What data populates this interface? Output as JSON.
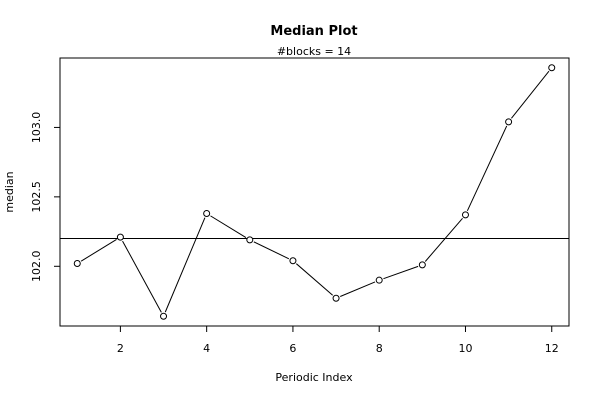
{
  "chart_data": {
    "type": "line",
    "title": "Median Plot",
    "subtitle": "#blocks =  14",
    "xlabel": "Periodic Index",
    "ylabel": "median",
    "x": [
      1,
      2,
      3,
      4,
      5,
      6,
      7,
      8,
      9,
      10,
      11,
      12
    ],
    "values": [
      102.02,
      102.21,
      101.64,
      102.38,
      102.19,
      102.04,
      101.77,
      101.9,
      102.01,
      102.37,
      103.04,
      103.43
    ],
    "reference_line": 102.2,
    "xlim": [
      0.6,
      12.4
    ],
    "ylim": [
      101.57,
      103.5
    ],
    "xticks": [
      2,
      4,
      6,
      8,
      10,
      12
    ],
    "yticks": [
      102.0,
      102.5,
      103.0
    ],
    "xtick_labels": [
      "2",
      "4",
      "6",
      "8",
      "10",
      "12"
    ],
    "ytick_labels": [
      "102.0",
      "102.5",
      "103.0"
    ],
    "line_color": "#000000",
    "marker": "open-circle",
    "grid": false
  }
}
